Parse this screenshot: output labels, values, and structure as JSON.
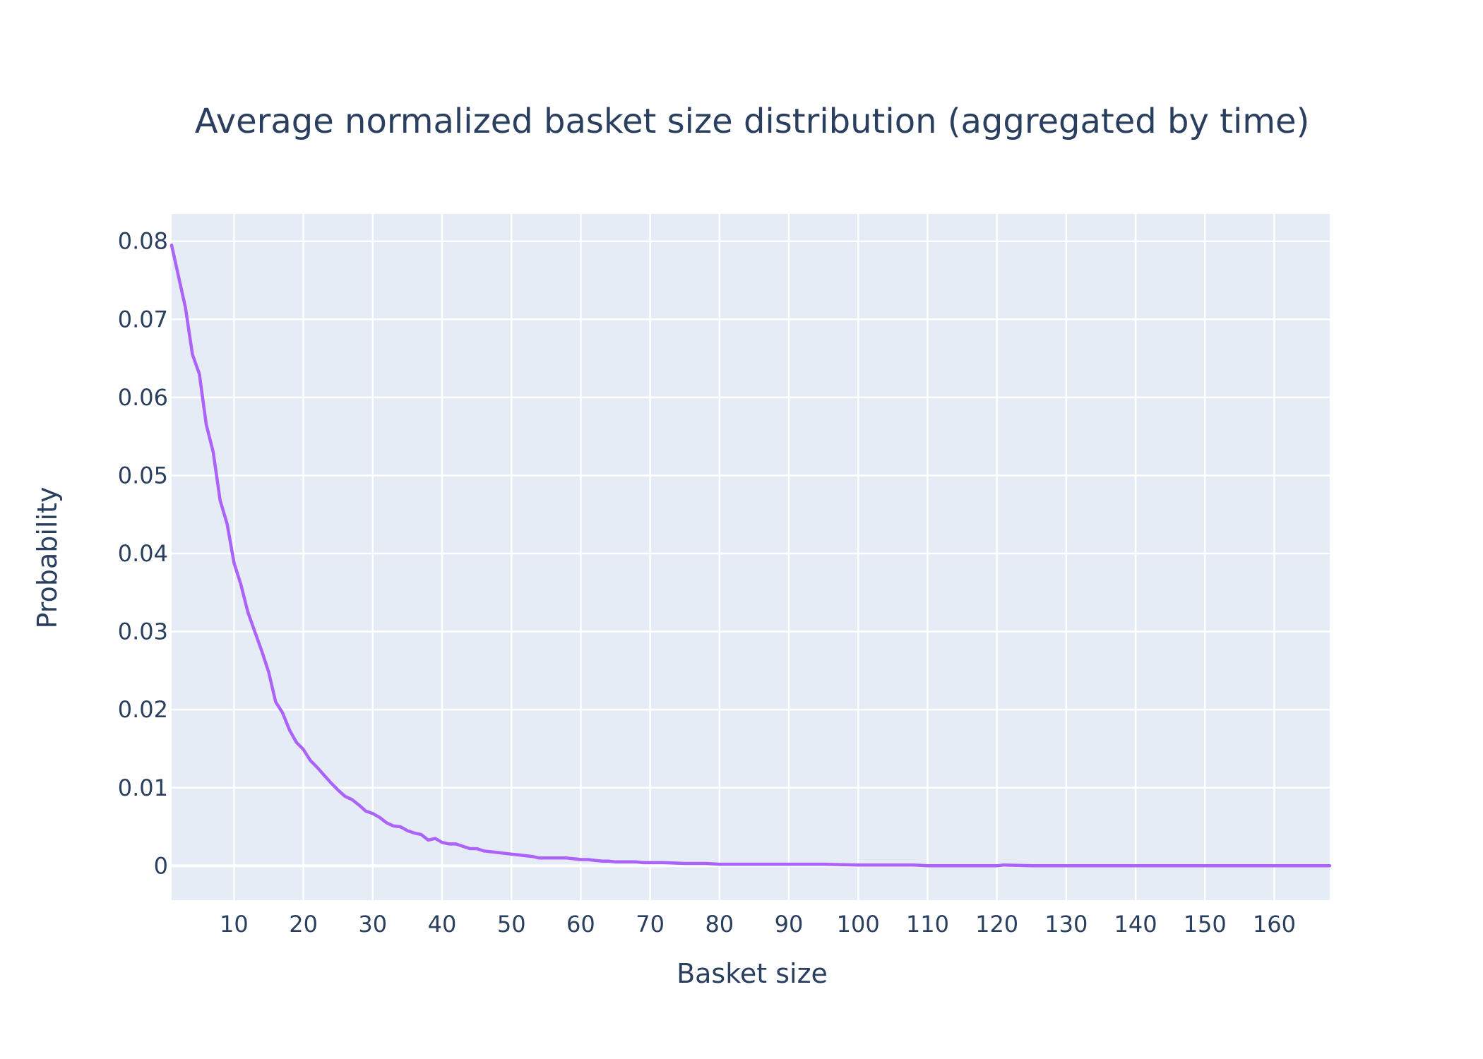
{
  "chart_data": {
    "type": "line",
    "title": "Average normalized basket size distribution (aggregated by time)",
    "xlabel": "Basket size",
    "ylabel": "Probability",
    "xlim": [
      1,
      168
    ],
    "ylim": [
      -0.0044,
      0.0835
    ],
    "grid": true,
    "xticks": [
      10,
      20,
      30,
      40,
      50,
      60,
      70,
      80,
      90,
      100,
      110,
      120,
      130,
      140,
      150,
      160
    ],
    "xtick_labels": [
      "10",
      "20",
      "30",
      "40",
      "50",
      "60",
      "70",
      "80",
      "90",
      "100",
      "110",
      "120",
      "130",
      "140",
      "150",
      "160"
    ],
    "yticks": [
      0,
      0.01,
      0.02,
      0.03,
      0.04,
      0.05,
      0.06,
      0.07,
      0.08
    ],
    "ytick_labels": [
      "0",
      "0.01",
      "0.02",
      "0.03",
      "0.04",
      "0.05",
      "0.06",
      "0.07",
      "0.08"
    ],
    "colors": {
      "plot_bg": "#e5ecf6",
      "grid": "#ffffff",
      "line": "#ab63fa",
      "text": "#2a3f5f"
    },
    "series": [
      {
        "x": [
          1,
          2,
          3,
          4,
          5,
          6,
          7,
          8,
          9,
          10,
          11,
          12,
          13,
          14,
          15,
          16,
          17,
          18,
          19,
          20,
          21,
          22,
          23,
          24,
          25,
          26,
          27,
          28,
          29,
          30,
          31,
          32,
          33,
          34,
          35,
          36,
          37,
          38,
          39,
          40,
          41,
          42,
          43,
          44,
          45,
          46,
          47,
          48,
          49,
          50,
          51,
          52,
          53,
          54,
          55,
          56,
          57,
          58,
          59,
          60,
          61,
          62,
          63,
          64,
          65,
          66,
          67,
          68,
          69,
          70,
          72,
          75,
          78,
          80,
          85,
          90,
          95,
          100,
          105,
          106,
          108,
          110,
          115,
          120,
          121,
          125,
          130,
          140,
          150,
          160,
          168
        ],
        "values": [
          0.0795,
          0.0755,
          0.0715,
          0.0655,
          0.063,
          0.0565,
          0.053,
          0.0468,
          0.0438,
          0.0388,
          0.036,
          0.0325,
          0.03,
          0.0275,
          0.0248,
          0.021,
          0.0196,
          0.0174,
          0.0158,
          0.0149,
          0.0135,
          0.0126,
          0.0116,
          0.0106,
          0.0097,
          0.0089,
          0.0085,
          0.0078,
          0.007,
          0.0067,
          0.0062,
          0.0055,
          0.0051,
          0.005,
          0.0045,
          0.0042,
          0.004,
          0.0033,
          0.0035,
          0.003,
          0.0028,
          0.0028,
          0.0025,
          0.0022,
          0.0022,
          0.0019,
          0.0018,
          0.0017,
          0.0016,
          0.0015,
          0.0014,
          0.0013,
          0.0012,
          0.001,
          0.001,
          0.001,
          0.001,
          0.001,
          0.0009,
          0.0008,
          0.0008,
          0.0007,
          0.0006,
          0.0006,
          0.0005,
          0.0005,
          0.0005,
          0.0005,
          0.0004,
          0.0004,
          0.0004,
          0.0003,
          0.0003,
          0.0002,
          0.0002,
          0.0002,
          0.0002,
          0.0001,
          0.0001,
          0.0001,
          0.0001,
          0.0,
          0.0,
          0.0,
          0.0001,
          0.0,
          0.0,
          0.0,
          0.0,
          0.0,
          0.0
        ]
      }
    ]
  }
}
